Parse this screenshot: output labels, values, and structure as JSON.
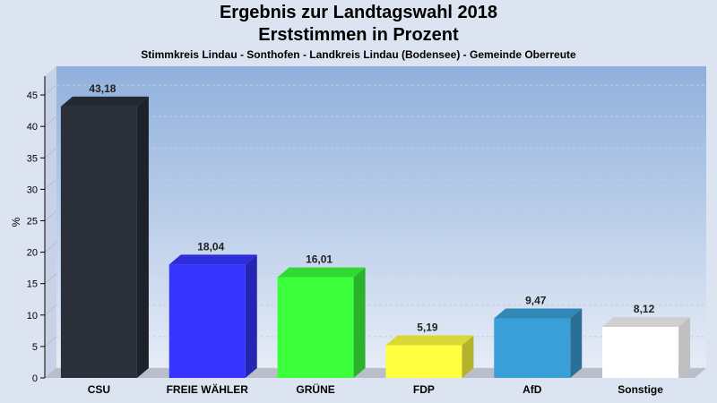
{
  "chart_data": {
    "type": "bar",
    "title": "Ergebnis zur Landtagswahl 2018",
    "subtitle": "Erststimmen in Prozent",
    "subsubtitle": "Stimmkreis Lindau - Sonthofen - Landkreis Lindau (Bodensee) - Gemeinde Oberreute",
    "xlabel": "",
    "ylabel": "%",
    "ylim": [
      0,
      48
    ],
    "yticks": [
      0,
      5,
      10,
      15,
      20,
      25,
      30,
      35,
      40,
      45
    ],
    "grid": true,
    "categories": [
      "CSU",
      "FREIE WÄHLER",
      "GRÜNE",
      "FDP",
      "AfD",
      "Sonstige"
    ],
    "values": [
      43.18,
      18.04,
      16.01,
      5.19,
      9.47,
      8.12
    ],
    "value_labels": [
      "43,18",
      "18,04",
      "16,01",
      "5,19",
      "9,47",
      "8,12"
    ],
    "colors": [
      "#2a2f3a",
      "#3535ff",
      "#3cff3c",
      "#ffff40",
      "#3a9fd6",
      "#ffffff"
    ]
  }
}
